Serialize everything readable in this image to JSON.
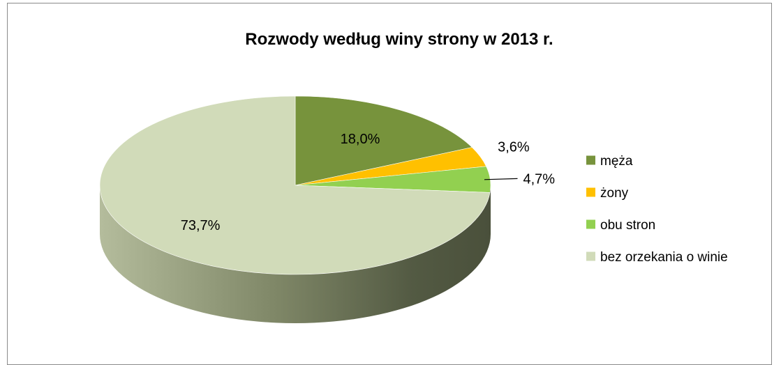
{
  "chart_data": {
    "type": "pie",
    "title": "Rozwody według winy strony w 2013 r.",
    "categories": [
      "męża",
      "żony",
      "obu stron",
      "bez orzekania o winie"
    ],
    "values": [
      18.0,
      3.6,
      4.7,
      73.7
    ],
    "labels": [
      "18,0%",
      "3,6%",
      "4,7%",
      "73,7%"
    ],
    "colors": [
      "#77933C",
      "#FFC000",
      "#92D050",
      "#D1DBB9"
    ],
    "legend_position": "right",
    "style": "3d"
  }
}
